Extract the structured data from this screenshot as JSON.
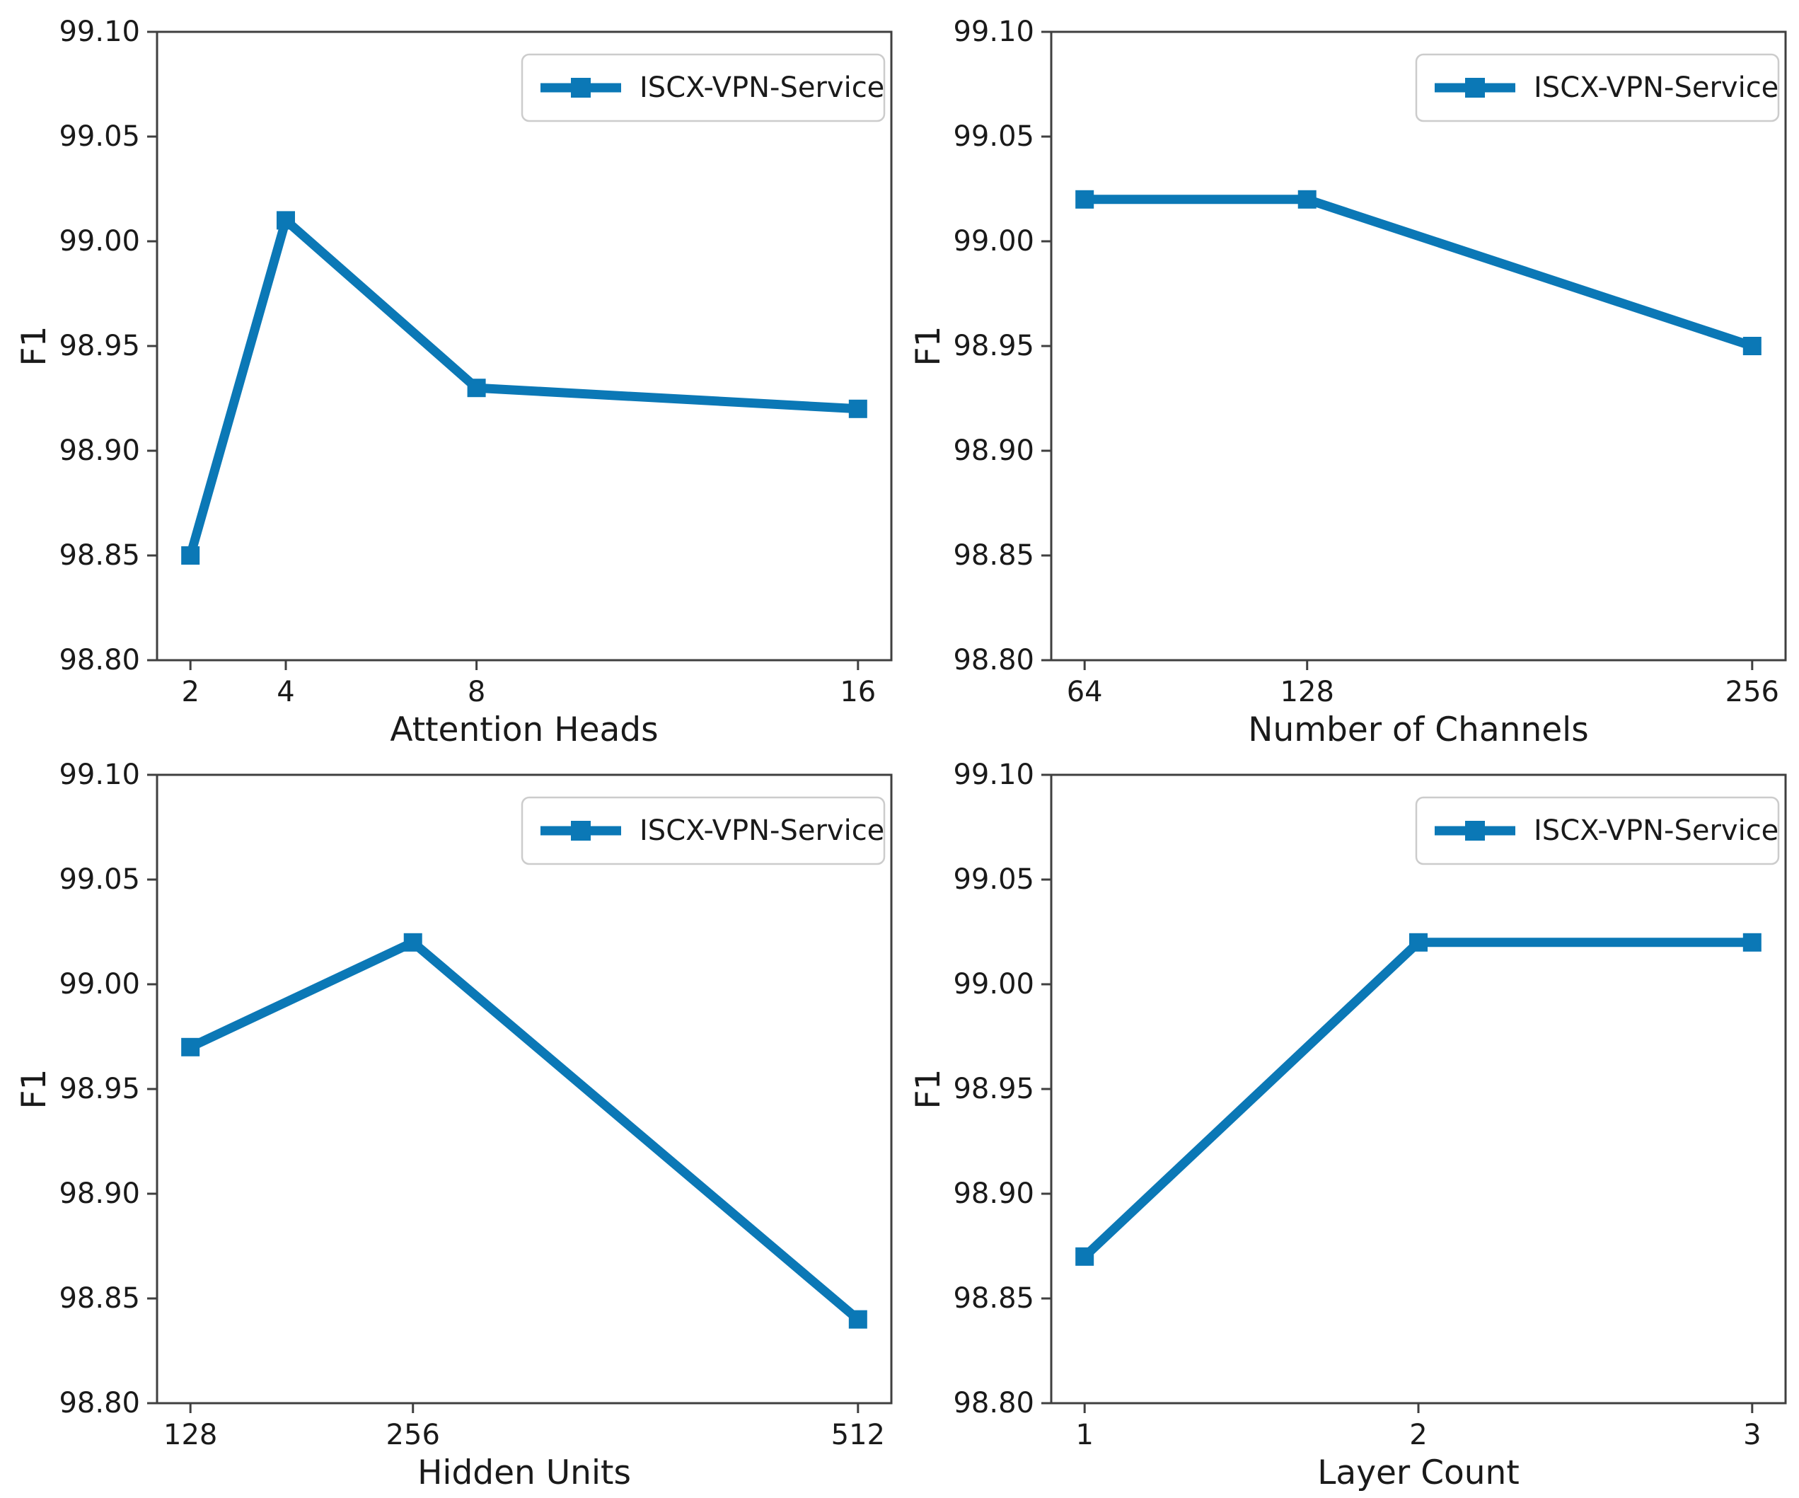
{
  "figure": {
    "background": "#ffffff",
    "text_color": "#1a1a1a",
    "spine_color": "#3f3f3f",
    "accent_color": "#0b78b6",
    "legend_label": "ISCX-VPN-Service"
  },
  "chart_data": [
    {
      "type": "line",
      "title": "",
      "xlabel": "Attention Heads",
      "ylabel": "F1",
      "x": [
        2,
        4,
        8,
        16
      ],
      "xtick_labels": [
        "2",
        "4",
        "8",
        "16"
      ],
      "series": [
        {
          "name": "ISCX-VPN-Service",
          "values": [
            98.85,
            99.01,
            98.93,
            98.92
          ]
        }
      ],
      "xlim": [
        1.3,
        16.7
      ],
      "ylim": [
        98.8,
        99.1
      ],
      "yticks": [
        98.8,
        98.85,
        98.9,
        98.95,
        99.0,
        99.05,
        99.1
      ],
      "grid": false,
      "marker": "square",
      "line_color": "#0b78b6",
      "legend_position": "upper right"
    },
    {
      "type": "line",
      "title": "",
      "xlabel": "Number of Channels",
      "ylabel": "F1",
      "x": [
        64,
        128,
        256
      ],
      "xtick_labels": [
        "64",
        "128",
        "256"
      ],
      "series": [
        {
          "name": "ISCX-VPN-Service",
          "values": [
            99.02,
            99.02,
            98.95
          ]
        }
      ],
      "xlim": [
        54.4,
        265.6
      ],
      "ylim": [
        98.8,
        99.1
      ],
      "yticks": [
        98.8,
        98.85,
        98.9,
        98.95,
        99.0,
        99.05,
        99.1
      ],
      "grid": false,
      "marker": "square",
      "line_color": "#0b78b6",
      "legend_position": "upper right"
    },
    {
      "type": "line",
      "title": "",
      "xlabel": "Hidden Units",
      "ylabel": "F1",
      "x": [
        128,
        256,
        512
      ],
      "xtick_labels": [
        "128",
        "256",
        "512"
      ],
      "series": [
        {
          "name": "ISCX-VPN-Service",
          "values": [
            98.97,
            99.02,
            98.84
          ]
        }
      ],
      "xlim": [
        108.8,
        531.2
      ],
      "ylim": [
        98.8,
        99.1
      ],
      "yticks": [
        98.8,
        98.85,
        98.9,
        98.95,
        99.0,
        99.05,
        99.1
      ],
      "grid": false,
      "marker": "square",
      "line_color": "#0b78b6",
      "legend_position": "upper right"
    },
    {
      "type": "line",
      "title": "",
      "xlabel": "Layer Count",
      "ylabel": "F1",
      "x": [
        1,
        2,
        3
      ],
      "xtick_labels": [
        "1",
        "2",
        "3"
      ],
      "series": [
        {
          "name": "ISCX-VPN-Service",
          "values": [
            98.87,
            99.02,
            99.02
          ]
        }
      ],
      "xlim": [
        0.9,
        3.1
      ],
      "ylim": [
        98.8,
        99.1
      ],
      "yticks": [
        98.8,
        98.85,
        98.9,
        98.95,
        99.0,
        99.05,
        99.1
      ],
      "grid": false,
      "marker": "square",
      "line_color": "#0b78b6",
      "legend_position": "upper right"
    }
  ]
}
